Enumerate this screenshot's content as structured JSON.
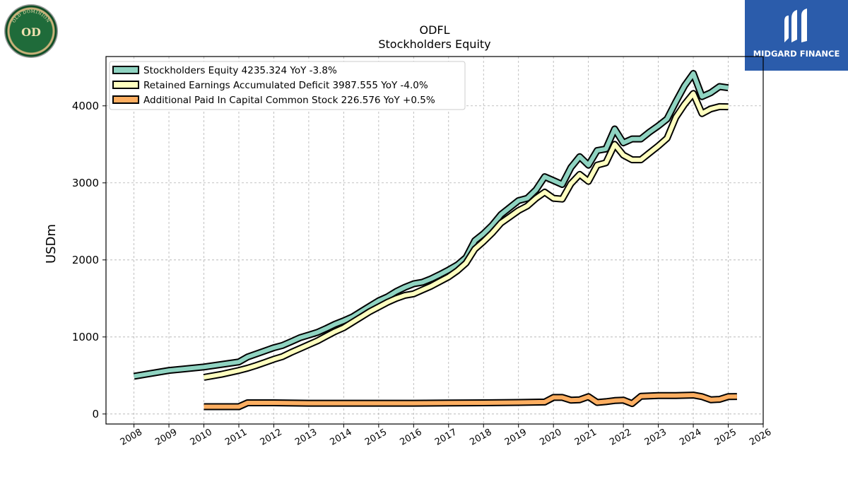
{
  "branding": {
    "company_logo_text": "OLD DOMINION FREIGHT LINE",
    "company_logo_mark": "OD",
    "brand_name": "MIDGARD FINANCE",
    "brand_color": "#2b5cab"
  },
  "chart_data": {
    "type": "line",
    "title": "ODFL",
    "subtitle": "Stockholders  Equity",
    "xlabel": "",
    "ylabel": "USDm",
    "xlim": [
      2007.2,
      2026.0
    ],
    "ylim": [
      -130,
      4640
    ],
    "x_ticks": [
      2008,
      2009,
      2010,
      2011,
      2012,
      2013,
      2014,
      2015,
      2016,
      2017,
      2018,
      2019,
      2020,
      2021,
      2022,
      2023,
      2024,
      2025,
      2026
    ],
    "y_ticks": [
      0,
      1000,
      2000,
      3000,
      4000
    ],
    "grid": true,
    "legend_position": "top-left",
    "series": [
      {
        "name": "Stockholders Equity  4235.324 YoY -3.8%",
        "color": "#8fd3c1",
        "points": [
          [
            2008.0,
            490
          ],
          [
            2009.0,
            565
          ],
          [
            2010.0,
            610
          ],
          [
            2011.0,
            675
          ],
          [
            2011.25,
            740
          ],
          [
            2011.5,
            780
          ],
          [
            2011.75,
            820
          ],
          [
            2012.0,
            860
          ],
          [
            2012.25,
            890
          ],
          [
            2012.5,
            940
          ],
          [
            2012.75,
            990
          ],
          [
            2013.0,
            1025
          ],
          [
            2013.25,
            1060
          ],
          [
            2013.5,
            1110
          ],
          [
            2013.75,
            1165
          ],
          [
            2014.0,
            1210
          ],
          [
            2014.25,
            1260
          ],
          [
            2014.5,
            1330
          ],
          [
            2014.75,
            1400
          ],
          [
            2015.0,
            1470
          ],
          [
            2015.25,
            1520
          ],
          [
            2015.5,
            1590
          ],
          [
            2015.75,
            1645
          ],
          [
            2016.0,
            1690
          ],
          [
            2016.25,
            1710
          ],
          [
            2016.5,
            1755
          ],
          [
            2016.75,
            1810
          ],
          [
            2017.0,
            1870
          ],
          [
            2017.25,
            1935
          ],
          [
            2017.5,
            2030
          ],
          [
            2017.75,
            2250
          ],
          [
            2018.0,
            2340
          ],
          [
            2018.25,
            2450
          ],
          [
            2018.5,
            2590
          ],
          [
            2018.75,
            2680
          ],
          [
            2019.0,
            2770
          ],
          [
            2019.25,
            2800
          ],
          [
            2019.5,
            2910
          ],
          [
            2019.75,
            3080
          ],
          [
            2020.0,
            3030
          ],
          [
            2020.25,
            2980
          ],
          [
            2020.5,
            3200
          ],
          [
            2020.75,
            3340
          ],
          [
            2021.0,
            3230
          ],
          [
            2021.25,
            3420
          ],
          [
            2021.5,
            3440
          ],
          [
            2021.75,
            3700
          ],
          [
            2022.0,
            3520
          ],
          [
            2022.25,
            3570
          ],
          [
            2022.5,
            3570
          ],
          [
            2022.75,
            3660
          ],
          [
            2023.0,
            3740
          ],
          [
            2023.25,
            3830
          ],
          [
            2023.5,
            4050
          ],
          [
            2023.75,
            4260
          ],
          [
            2024.0,
            4420
          ],
          [
            2024.25,
            4120
          ],
          [
            2024.5,
            4170
          ],
          [
            2024.75,
            4250
          ],
          [
            2025.0,
            4235
          ]
        ]
      },
      {
        "name": "Retained Earnings Accumulated Deficit  3987.555 YoY -4.0%",
        "color": "#ffffbf",
        "points": [
          [
            2010.0,
            475
          ],
          [
            2010.5,
            515
          ],
          [
            2011.0,
            565
          ],
          [
            2011.25,
            595
          ],
          [
            2011.5,
            630
          ],
          [
            2011.75,
            670
          ],
          [
            2012.0,
            710
          ],
          [
            2012.25,
            745
          ],
          [
            2012.5,
            800
          ],
          [
            2012.75,
            850
          ],
          [
            2013.0,
            900
          ],
          [
            2013.25,
            950
          ],
          [
            2013.5,
            1010
          ],
          [
            2013.75,
            1070
          ],
          [
            2014.0,
            1120
          ],
          [
            2014.25,
            1190
          ],
          [
            2014.5,
            1260
          ],
          [
            2014.75,
            1330
          ],
          [
            2015.0,
            1390
          ],
          [
            2015.25,
            1450
          ],
          [
            2015.5,
            1500
          ],
          [
            2015.75,
            1540
          ],
          [
            2016.0,
            1560
          ],
          [
            2016.25,
            1610
          ],
          [
            2016.5,
            1660
          ],
          [
            2016.75,
            1720
          ],
          [
            2017.0,
            1780
          ],
          [
            2017.25,
            1860
          ],
          [
            2017.5,
            1960
          ],
          [
            2017.75,
            2140
          ],
          [
            2018.0,
            2240
          ],
          [
            2018.25,
            2350
          ],
          [
            2018.5,
            2480
          ],
          [
            2018.75,
            2560
          ],
          [
            2019.0,
            2640
          ],
          [
            2019.25,
            2700
          ],
          [
            2019.5,
            2800
          ],
          [
            2019.75,
            2880
          ],
          [
            2020.0,
            2800
          ],
          [
            2020.25,
            2790
          ],
          [
            2020.5,
            2990
          ],
          [
            2020.75,
            3110
          ],
          [
            2021.0,
            3020
          ],
          [
            2021.25,
            3230
          ],
          [
            2021.5,
            3260
          ],
          [
            2021.75,
            3500
          ],
          [
            2022.0,
            3360
          ],
          [
            2022.25,
            3300
          ],
          [
            2022.5,
            3300
          ],
          [
            2022.75,
            3390
          ],
          [
            2023.0,
            3480
          ],
          [
            2023.25,
            3580
          ],
          [
            2023.5,
            3850
          ],
          [
            2023.75,
            4020
          ],
          [
            2024.0,
            4160
          ],
          [
            2024.25,
            3900
          ],
          [
            2024.5,
            3960
          ],
          [
            2024.75,
            3990
          ],
          [
            2025.0,
            3988
          ]
        ]
      },
      {
        "name": "Additional Paid In Capital Common Stock  226.576 YoY +0.5%",
        "color": "#fdae61",
        "points": [
          [
            2010.0,
            95
          ],
          [
            2011.0,
            95
          ],
          [
            2011.25,
            145
          ],
          [
            2012.0,
            145
          ],
          [
            2013.0,
            140
          ],
          [
            2014.0,
            140
          ],
          [
            2015.0,
            140
          ],
          [
            2016.0,
            140
          ],
          [
            2017.0,
            142
          ],
          [
            2018.0,
            145
          ],
          [
            2019.0,
            150
          ],
          [
            2019.75,
            155
          ],
          [
            2020.0,
            215
          ],
          [
            2020.25,
            215
          ],
          [
            2020.5,
            180
          ],
          [
            2020.75,
            185
          ],
          [
            2021.0,
            225
          ],
          [
            2021.25,
            150
          ],
          [
            2021.5,
            160
          ],
          [
            2021.75,
            175
          ],
          [
            2022.0,
            180
          ],
          [
            2022.25,
            135
          ],
          [
            2022.5,
            230
          ],
          [
            2022.75,
            235
          ],
          [
            2023.0,
            240
          ],
          [
            2023.5,
            240
          ],
          [
            2024.0,
            245
          ],
          [
            2024.25,
            225
          ],
          [
            2024.5,
            185
          ],
          [
            2024.75,
            190
          ],
          [
            2025.0,
            225
          ],
          [
            2025.25,
            227
          ]
        ]
      }
    ]
  }
}
